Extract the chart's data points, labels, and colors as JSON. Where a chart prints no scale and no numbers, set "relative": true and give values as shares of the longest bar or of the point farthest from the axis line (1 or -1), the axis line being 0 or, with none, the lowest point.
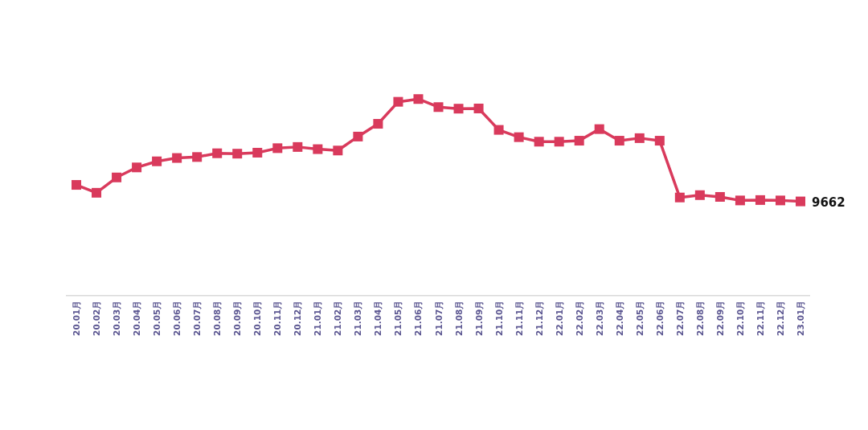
{
  "chart_data": {
    "type": "line",
    "relative": true,
    "marker": "square",
    "line_style": "solid",
    "categories": [
      "20.01月",
      "20.02月",
      "20.03月",
      "20.04月",
      "20.05月",
      "20.06月",
      "20.07月",
      "20.08月",
      "20.09月",
      "20.10月",
      "20.11月",
      "20.12月",
      "21.01月",
      "21.02月",
      "21.03月",
      "21.04月",
      "21.05月",
      "21.06月",
      "21.07月",
      "21.08月",
      "21.09月",
      "21.10月",
      "21.11月",
      "21.12月",
      "22.01月",
      "22.02月",
      "22.03月",
      "22.04月",
      "22.05月",
      "22.06月",
      "22.07月",
      "22.08月",
      "22.09月",
      "22.10月",
      "22.11月",
      "22.12月",
      "23.01月"
    ],
    "series": [
      {
        "color": "#d93a5c",
        "values": [
          0.563,
          0.523,
          0.601,
          0.652,
          0.683,
          0.7,
          0.705,
          0.724,
          0.722,
          0.727,
          0.75,
          0.756,
          0.745,
          0.738,
          0.809,
          0.874,
          0.986,
          1,
          0.959,
          0.951,
          0.952,
          0.843,
          0.806,
          0.783,
          0.783,
          0.788,
          0.847,
          0.788,
          0.801,
          0.788,
          0.499,
          0.511,
          0.502,
          0.484,
          0.486,
          0.484,
          0.479
        ]
      }
    ],
    "annotations": [
      {
        "text": "9662",
        "x": "23.01月",
        "y": 0.479
      }
    ]
  }
}
